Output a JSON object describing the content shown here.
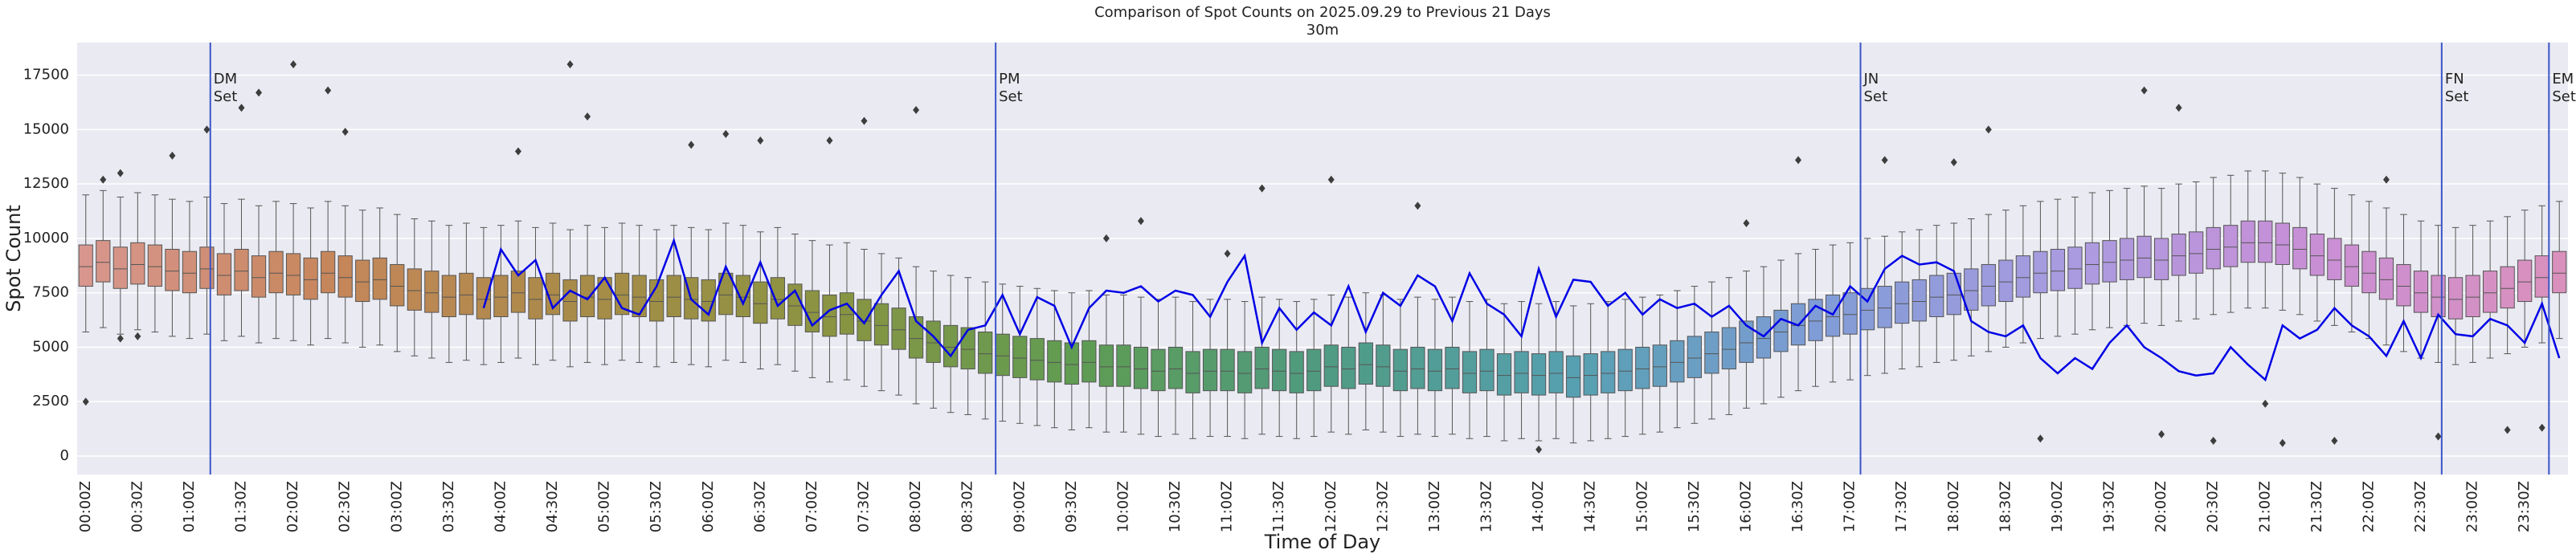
{
  "chart_data": {
    "type": "box",
    "title": "Comparison of Spot Counts on 2025.09.29 to Previous 21 Days",
    "subtitle": "30m",
    "x_label": "Time of Day",
    "y_label": "Spot Count",
    "ylim": [
      -850,
      19000
    ],
    "yticks": [
      0,
      2500,
      5000,
      7500,
      10000,
      12500,
      15000,
      17500
    ],
    "grid": true,
    "palette": [
      "#d8968e",
      "#c6865a",
      "#a88b48",
      "#8a9442",
      "#5f9c52",
      "#4f9b82",
      "#56a0b0",
      "#7f9cd6",
      "#a99be0",
      "#c98fd6",
      "#d990bc"
    ],
    "categories": [
      "00:00Z",
      null,
      null,
      "00:30Z",
      null,
      null,
      "01:00Z",
      null,
      null,
      "01:30Z",
      null,
      null,
      "02:00Z",
      null,
      null,
      "02:30Z",
      null,
      null,
      "03:00Z",
      null,
      null,
      "03:30Z",
      null,
      null,
      "04:00Z",
      null,
      null,
      "04:30Z",
      null,
      null,
      "05:00Z",
      null,
      null,
      "05:30Z",
      null,
      null,
      "06:00Z",
      null,
      null,
      "06:30Z",
      null,
      null,
      "07:00Z",
      null,
      null,
      "07:30Z",
      null,
      null,
      "08:00Z",
      null,
      null,
      "08:30Z",
      null,
      null,
      "09:00Z",
      null,
      null,
      "09:30Z",
      null,
      null,
      "10:00Z",
      null,
      null,
      "10:30Z",
      null,
      null,
      "11:00Z",
      null,
      null,
      "11:30Z",
      null,
      null,
      "12:00Z",
      null,
      null,
      "12:30Z",
      null,
      null,
      "13:00Z",
      null,
      null,
      "13:30Z",
      null,
      null,
      "14:00Z",
      null,
      null,
      "14:30Z",
      null,
      null,
      "15:00Z",
      null,
      null,
      "15:30Z",
      null,
      null,
      "16:00Z",
      null,
      null,
      "16:30Z",
      null,
      null,
      "17:00Z",
      null,
      null,
      "17:30Z",
      null,
      null,
      "18:00Z",
      null,
      null,
      "18:30Z",
      null,
      null,
      "19:00Z",
      null,
      null,
      "19:30Z",
      null,
      null,
      "20:00Z",
      null,
      null,
      "20:30Z",
      null,
      null,
      "21:00Z",
      null,
      null,
      "21:30Z",
      null,
      null,
      "22:00Z",
      null,
      null,
      "22:30Z",
      null,
      null,
      "23:00Z",
      null,
      null,
      "23:30Z",
      null,
      null
    ],
    "boxes": [
      [
        5700,
        7800,
        8700,
        9700,
        12000
      ],
      [
        5900,
        8000,
        8900,
        9900,
        12200
      ],
      [
        5600,
        7700,
        8600,
        9600,
        11900
      ],
      [
        5800,
        7900,
        8800,
        9800,
        12100
      ],
      [
        5700,
        7800,
        8700,
        9700,
        12000
      ],
      [
        5500,
        7600,
        8500,
        9500,
        11800
      ],
      [
        5400,
        7500,
        8400,
        9400,
        11700
      ],
      [
        5600,
        7700,
        8600,
        9600,
        11900
      ],
      [
        5300,
        7400,
        8300,
        9300,
        11600
      ],
      [
        5500,
        7600,
        8500,
        9500,
        11800
      ],
      [
        5200,
        7300,
        8200,
        9200,
        11500
      ],
      [
        5400,
        7500,
        8400,
        9400,
        11700
      ],
      [
        5300,
        7400,
        8300,
        9300,
        11600
      ],
      [
        5100,
        7200,
        8100,
        9100,
        11400
      ],
      [
        5400,
        7500,
        8400,
        9400,
        11700
      ],
      [
        5200,
        7300,
        8200,
        9200,
        11500
      ],
      [
        5000,
        7100,
        8000,
        9000,
        11300
      ],
      [
        5100,
        7200,
        8100,
        9100,
        11400
      ],
      [
        4800,
        6900,
        7800,
        8800,
        11100
      ],
      [
        4600,
        6700,
        7600,
        8600,
        10900
      ],
      [
        4500,
        6600,
        7500,
        8500,
        10800
      ],
      [
        4300,
        6400,
        7300,
        8300,
        10600
      ],
      [
        4400,
        6500,
        7400,
        8400,
        10700
      ],
      [
        4200,
        6300,
        7200,
        8200,
        10500
      ],
      [
        4300,
        6400,
        7300,
        8300,
        10600
      ],
      [
        4500,
        6600,
        7500,
        8500,
        10800
      ],
      [
        4200,
        6300,
        7200,
        8200,
        10500
      ],
      [
        4400,
        6500,
        7400,
        8400,
        10700
      ],
      [
        4100,
        6200,
        7100,
        8100,
        10400
      ],
      [
        4300,
        6400,
        7300,
        8300,
        10600
      ],
      [
        4200,
        6300,
        7200,
        8200,
        10500
      ],
      [
        4400,
        6500,
        7400,
        8400,
        10700
      ],
      [
        4300,
        6400,
        7300,
        8300,
        10600
      ],
      [
        4100,
        6200,
        7100,
        8100,
        10400
      ],
      [
        4300,
        6400,
        7300,
        8300,
        10600
      ],
      [
        4200,
        6300,
        7200,
        8200,
        10500
      ],
      [
        4100,
        6200,
        7100,
        8100,
        10400
      ],
      [
        4400,
        6500,
        7400,
        8400,
        10700
      ],
      [
        4300,
        6400,
        7300,
        8300,
        10600
      ],
      [
        4000,
        6100,
        7000,
        8000,
        10300
      ],
      [
        4200,
        6300,
        7200,
        8200,
        10500
      ],
      [
        3900,
        6000,
        6900,
        7900,
        10200
      ],
      [
        3600,
        5700,
        6600,
        7600,
        9900
      ],
      [
        3400,
        5500,
        6400,
        7400,
        9700
      ],
      [
        3500,
        5600,
        6500,
        7500,
        9800
      ],
      [
        3200,
        5300,
        6200,
        7200,
        9500
      ],
      [
        3000,
        5100,
        6000,
        7000,
        9300
      ],
      [
        2800,
        4900,
        5800,
        6800,
        9100
      ],
      [
        2400,
        4500,
        5400,
        6400,
        8700
      ],
      [
        2200,
        4300,
        5200,
        6200,
        8500
      ],
      [
        2000,
        4100,
        5000,
        6000,
        8300
      ],
      [
        1900,
        4000,
        4900,
        5900,
        8200
      ],
      [
        1700,
        3800,
        4700,
        5700,
        8000
      ],
      [
        1600,
        3700,
        4600,
        5600,
        7900
      ],
      [
        1500,
        3600,
        4500,
        5500,
        7800
      ],
      [
        1400,
        3500,
        4400,
        5400,
        7700
      ],
      [
        1300,
        3400,
        4300,
        5300,
        7600
      ],
      [
        1200,
        3300,
        4200,
        5200,
        7500
      ],
      [
        1300,
        3400,
        4300,
        5300,
        7600
      ],
      [
        1100,
        3200,
        4100,
        5100,
        7400
      ],
      [
        1100,
        3200,
        4100,
        5100,
        7400
      ],
      [
        1000,
        3100,
        4000,
        5000,
        7300
      ],
      [
        900,
        3000,
        3900,
        4900,
        7200
      ],
      [
        1000,
        3100,
        4000,
        5000,
        7300
      ],
      [
        800,
        2900,
        3800,
        4800,
        7100
      ],
      [
        900,
        3000,
        3900,
        4900,
        7200
      ],
      [
        900,
        3000,
        3900,
        4900,
        7200
      ],
      [
        800,
        2900,
        3800,
        4800,
        7100
      ],
      [
        1000,
        3100,
        4000,
        5000,
        7300
      ],
      [
        900,
        3000,
        3900,
        4900,
        7200
      ],
      [
        800,
        2900,
        3800,
        4800,
        7100
      ],
      [
        900,
        3000,
        3900,
        4900,
        7200
      ],
      [
        1100,
        3200,
        4100,
        5100,
        7400
      ],
      [
        1000,
        3100,
        4000,
        5000,
        7300
      ],
      [
        1200,
        3300,
        4200,
        5200,
        7500
      ],
      [
        1100,
        3200,
        4100,
        5100,
        7400
      ],
      [
        900,
        3000,
        3900,
        4900,
        7200
      ],
      [
        1000,
        3100,
        4000,
        5000,
        7300
      ],
      [
        900,
        3000,
        3900,
        4900,
        7200
      ],
      [
        1000,
        3100,
        4000,
        5000,
        7300
      ],
      [
        800,
        2900,
        3800,
        4800,
        7100
      ],
      [
        900,
        3000,
        3900,
        4900,
        7200
      ],
      [
        700,
        2800,
        3700,
        4700,
        7000
      ],
      [
        800,
        2900,
        3800,
        4800,
        7100
      ],
      [
        700,
        2800,
        3700,
        4700,
        7000
      ],
      [
        800,
        2900,
        3800,
        4800,
        7100
      ],
      [
        600,
        2700,
        3600,
        4600,
        6900
      ],
      [
        700,
        2800,
        3700,
        4700,
        7000
      ],
      [
        800,
        2900,
        3800,
        4800,
        7100
      ],
      [
        900,
        3000,
        3900,
        4900,
        7200
      ],
      [
        1000,
        3100,
        4000,
        5000,
        7300
      ],
      [
        1100,
        3200,
        4100,
        5100,
        7400
      ],
      [
        1300,
        3400,
        4300,
        5300,
        7600
      ],
      [
        1500,
        3600,
        4500,
        5500,
        7800
      ],
      [
        1700,
        3800,
        4700,
        5700,
        8000
      ],
      [
        1900,
        4000,
        4900,
        5900,
        8200
      ],
      [
        2200,
        4300,
        5200,
        6200,
        8500
      ],
      [
        2400,
        4500,
        5400,
        6400,
        8700
      ],
      [
        2700,
        4800,
        5700,
        6700,
        9000
      ],
      [
        3000,
        5100,
        6000,
        7000,
        9300
      ],
      [
        3200,
        5300,
        6200,
        7200,
        9500
      ],
      [
        3400,
        5500,
        6400,
        7400,
        9700
      ],
      [
        3500,
        5600,
        6500,
        7500,
        9800
      ],
      [
        3700,
        5800,
        6700,
        7700,
        10000
      ],
      [
        3800,
        5900,
        6800,
        7800,
        10100
      ],
      [
        4000,
        6100,
        7000,
        8000,
        10300
      ],
      [
        4100,
        6200,
        7100,
        8100,
        10400
      ],
      [
        4300,
        6400,
        7300,
        8300,
        10600
      ],
      [
        4400,
        6500,
        7400,
        8400,
        10700
      ],
      [
        4600,
        6700,
        7600,
        8600,
        10900
      ],
      [
        4800,
        6900,
        7800,
        8800,
        11100
      ],
      [
        5000,
        7100,
        8000,
        9000,
        11300
      ],
      [
        5200,
        7300,
        8200,
        9200,
        11500
      ],
      [
        5400,
        7500,
        8400,
        9400,
        11700
      ],
      [
        5500,
        7600,
        8500,
        9500,
        11800
      ],
      [
        5600,
        7700,
        8600,
        9600,
        11900
      ],
      [
        5800,
        7900,
        8800,
        9800,
        12100
      ],
      [
        5900,
        8000,
        8900,
        9900,
        12200
      ],
      [
        6000,
        8100,
        9000,
        10000,
        12300
      ],
      [
        6100,
        8200,
        9100,
        10100,
        12400
      ],
      [
        6000,
        8100,
        9000,
        10000,
        12300
      ],
      [
        6200,
        8300,
        9200,
        10200,
        12500
      ],
      [
        6300,
        8400,
        9300,
        10300,
        12600
      ],
      [
        6500,
        8600,
        9500,
        10500,
        12800
      ],
      [
        6600,
        8700,
        9600,
        10600,
        12900
      ],
      [
        6800,
        8900,
        9800,
        10800,
        13100
      ],
      [
        6800,
        8900,
        9800,
        10800,
        13100
      ],
      [
        6700,
        8800,
        9700,
        10700,
        13000
      ],
      [
        6500,
        8600,
        9500,
        10500,
        12800
      ],
      [
        6200,
        8300,
        9200,
        10200,
        12500
      ],
      [
        6000,
        8100,
        9000,
        10000,
        12300
      ],
      [
        5700,
        7800,
        8700,
        9700,
        12000
      ],
      [
        5400,
        7500,
        8400,
        9400,
        11700
      ],
      [
        5100,
        7200,
        8100,
        9100,
        11400
      ],
      [
        4800,
        6900,
        7800,
        8800,
        11100
      ],
      [
        4500,
        6600,
        7500,
        8500,
        10800
      ],
      [
        4300,
        6400,
        7300,
        8300,
        10600
      ],
      [
        4200,
        6300,
        7200,
        8200,
        10500
      ],
      [
        4300,
        6400,
        7300,
        8300,
        10600
      ],
      [
        4500,
        6600,
        7500,
        8500,
        10800
      ],
      [
        4700,
        6800,
        7700,
        8700,
        11000
      ],
      [
        5000,
        7100,
        8000,
        9000,
        11300
      ],
      [
        5200,
        7300,
        8200,
        9200,
        11500
      ],
      [
        5400,
        7500,
        8400,
        9400,
        11700
      ]
    ],
    "outliers": [
      [
        0,
        2500
      ],
      [
        1,
        12700
      ],
      [
        2,
        13000
      ],
      [
        2,
        5400
      ],
      [
        3,
        5500
      ],
      [
        5,
        13800
      ],
      [
        7,
        15000
      ],
      [
        9,
        16000
      ],
      [
        10,
        16700
      ],
      [
        12,
        18000
      ],
      [
        14,
        16800
      ],
      [
        15,
        14900
      ],
      [
        25,
        14000
      ],
      [
        28,
        18000
      ],
      [
        29,
        15600
      ],
      [
        35,
        14300
      ],
      [
        37,
        14800
      ],
      [
        39,
        14500
      ],
      [
        43,
        14500
      ],
      [
        45,
        15400
      ],
      [
        48,
        15900
      ],
      [
        59,
        10000
      ],
      [
        61,
        10800
      ],
      [
        66,
        9300
      ],
      [
        68,
        12300
      ],
      [
        72,
        12700
      ],
      [
        77,
        11500
      ],
      [
        84,
        300
      ],
      [
        96,
        10700
      ],
      [
        99,
        13600
      ],
      [
        104,
        13600
      ],
      [
        108,
        13500
      ],
      [
        110,
        15000
      ],
      [
        113,
        800
      ],
      [
        119,
        16800
      ],
      [
        121,
        16000
      ],
      [
        120,
        1000
      ],
      [
        123,
        700
      ],
      [
        126,
        2400
      ],
      [
        127,
        600
      ],
      [
        130,
        700
      ],
      [
        133,
        12700
      ],
      [
        136,
        900
      ],
      [
        140,
        1200
      ],
      [
        142,
        1300
      ]
    ],
    "line": {
      "color": "#0000e6",
      "values": [
        null,
        null,
        null,
        null,
        null,
        null,
        null,
        null,
        null,
        null,
        null,
        null,
        null,
        null,
        null,
        null,
        null,
        null,
        null,
        null,
        null,
        null,
        null,
        6800,
        9500,
        8300,
        9000,
        6800,
        7600,
        7200,
        8200,
        6800,
        6500,
        7800,
        9900,
        7200,
        6500,
        8700,
        7000,
        8900,
        6900,
        7600,
        6000,
        6700,
        7000,
        6100,
        7400,
        8500,
        6200,
        5500,
        4600,
        5800,
        6000,
        7400,
        5600,
        7300,
        6900,
        5000,
        6800,
        7600,
        7500,
        7800,
        7100,
        7600,
        7400,
        6400,
        8000,
        9200,
        5200,
        6800,
        5800,
        6600,
        6000,
        7800,
        5700,
        7500,
        6900,
        8300,
        7800,
        6200,
        8400,
        7000,
        6500,
        5500,
        8600,
        6400,
        8100,
        8000,
        6900,
        7500,
        6500,
        7200,
        6800,
        7000,
        6400,
        6900,
        6000,
        5500,
        6300,
        6000,
        6900,
        6500,
        7800,
        7100,
        8600,
        9200,
        8800,
        8900,
        8500,
        6200,
        5700,
        5500,
        6000,
        4500,
        3800,
        4500,
        4000,
        5200,
        6000,
        5000,
        4500,
        3900,
        3700,
        3800,
        5000,
        4200,
        3500,
        6000,
        5400,
        5800,
        6800,
        6000,
        5500,
        4600,
        6200,
        4500,
        6500,
        5600,
        5500,
        6300,
        6000,
        5200,
        7000,
        4500
      ]
    },
    "vlines": {
      "color": "#3a55c8",
      "items": [
        {
          "x": 7.2,
          "label": [
            "DM",
            "Set"
          ]
        },
        {
          "x": 52.6,
          "label": [
            "PM",
            "Set"
          ]
        },
        {
          "x": 102.6,
          "label": [
            "JN",
            "Set"
          ]
        },
        {
          "x": 136.2,
          "label": [
            "FN",
            "Set"
          ]
        },
        {
          "x": 142.4,
          "label": [
            "EM",
            "Set"
          ]
        }
      ]
    }
  }
}
